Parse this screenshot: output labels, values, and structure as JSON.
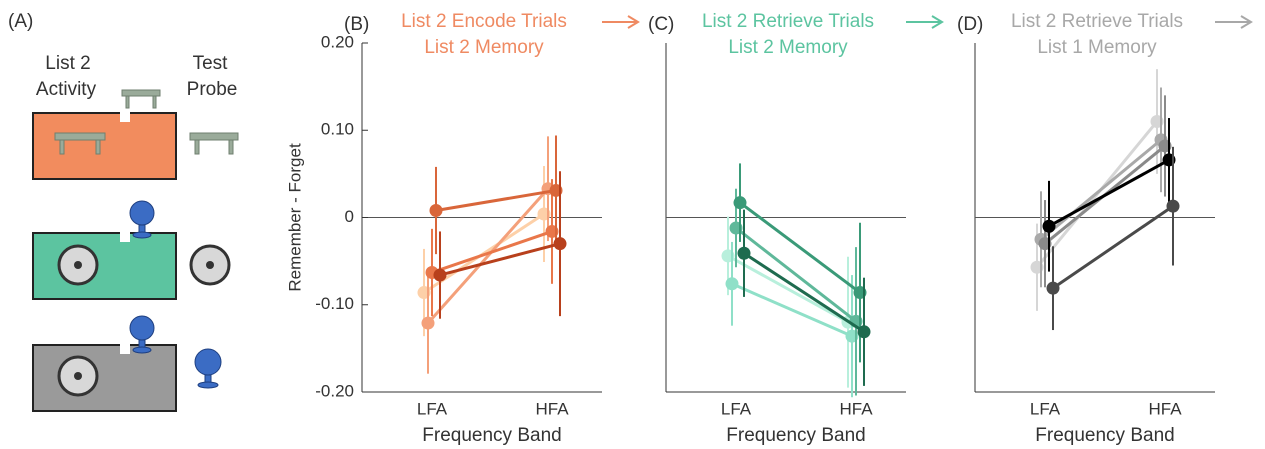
{
  "panel_a": {
    "label": "(A)",
    "left_header": [
      "List 2",
      "Activity"
    ],
    "right_header": [
      "Test",
      "Probe"
    ]
  },
  "chart_data": [
    {
      "type": "line",
      "label": "(B)",
      "title": [
        "List 2 Encode Trials",
        "List 2 Memory"
      ],
      "title_color": "#ef8a62",
      "y_label": "Remember - Forget",
      "x_label": "Frequency Band",
      "categories": [
        "LFA",
        "HFA"
      ],
      "ylim": [
        -0.2,
        0.2
      ],
      "yticks": [
        {
          "value": 0.2,
          "label": "0.20"
        },
        {
          "value": 0.1,
          "label": "0.10"
        },
        0,
        {
          "value": -0.1,
          "label": "-0.10"
        },
        {
          "value": -0.2,
          "label": "-0.20"
        }
      ],
      "reference_line": 0,
      "series": [
        {
          "color": "#fdd0a8",
          "values": [
            -0.086,
            0.004
          ],
          "errors": [
            0.05,
            0.055
          ]
        },
        {
          "color": "#f4a07a",
          "values": [
            -0.121,
            0.033
          ],
          "errors": [
            0.058,
            0.06
          ]
        },
        {
          "color": "#e9774a",
          "values": [
            -0.063,
            -0.016
          ],
          "errors": [
            0.05,
            0.06
          ]
        },
        {
          "color": "#d9663a",
          "values": [
            0.008,
            0.031
          ],
          "errors": [
            0.05,
            0.063
          ]
        },
        {
          "color": "#b8401c",
          "values": [
            -0.066,
            -0.03
          ],
          "errors": [
            0.05,
            0.083
          ]
        }
      ]
    },
    {
      "type": "line",
      "label": "(C)",
      "title": [
        "List 2 Retrieve Trials",
        "List 2 Memory"
      ],
      "title_color": "#5cc4a0",
      "x_label": "Frequency Band",
      "categories": [
        "LFA",
        "HFA"
      ],
      "ylim": [
        -0.2,
        0.2
      ],
      "reference_line": 0,
      "series": [
        {
          "color": "#b8efdc",
          "values": [
            -0.044,
            -0.12
          ],
          "errors": [
            0.045,
            0.075
          ]
        },
        {
          "color": "#8fe0c8",
          "values": [
            -0.076,
            -0.136
          ],
          "errors": [
            0.048,
            0.07
          ]
        },
        {
          "color": "#5fb89a",
          "values": [
            -0.012,
            -0.119
          ],
          "errors": [
            0.045,
            0.085
          ]
        },
        {
          "color": "#3a9a78",
          "values": [
            0.017,
            -0.086
          ],
          "errors": [
            0.045,
            0.08
          ]
        },
        {
          "color": "#1e6b4f",
          "values": [
            -0.041,
            -0.131
          ],
          "errors": [
            0.05,
            0.062
          ]
        }
      ]
    },
    {
      "type": "line",
      "label": "(D)",
      "title": [
        "List 2 Retrieve Trials",
        "List 1 Memory"
      ],
      "title_color": "#a8a8a8",
      "x_label": "Frequency Band",
      "categories": [
        "LFA",
        "HFA"
      ],
      "ylim": [
        -0.2,
        0.2
      ],
      "reference_line": 0,
      "series": [
        {
          "color": "#d6d6d6",
          "values": [
            -0.057,
            0.11
          ],
          "errors": [
            0.05,
            0.06
          ]
        },
        {
          "color": "#a9a9a9",
          "values": [
            -0.025,
            0.089
          ],
          "errors": [
            0.055,
            0.06
          ]
        },
        {
          "color": "#8a8a8a",
          "values": [
            -0.03,
            0.082
          ],
          "errors": [
            0.05,
            0.058
          ]
        },
        {
          "color": "#000000",
          "values": [
            -0.01,
            0.066
          ],
          "errors": [
            0.052,
            0.048
          ]
        },
        {
          "color": "#4a4a4a",
          "values": [
            -0.081,
            0.013
          ],
          "errors": [
            0.048,
            0.068
          ]
        }
      ]
    }
  ]
}
